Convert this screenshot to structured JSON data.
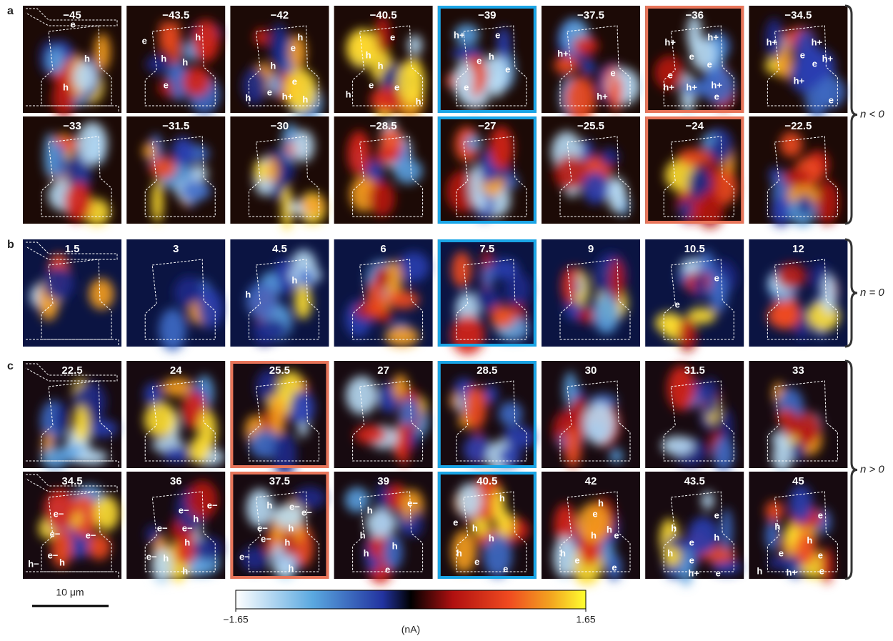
{
  "sections": [
    {
      "label": "a",
      "brace": "n < 0",
      "rows": [
        [
          {
            "title": "−45",
            "labels": [
              "e",
              "h",
              "h"
            ]
          },
          {
            "title": "−43.5",
            "labels": [
              "e",
              "h",
              "h",
              "h",
              "e"
            ]
          },
          {
            "title": "−42",
            "labels": [
              "h",
              "e",
              "h",
              "e",
              "h",
              "e",
              "h+",
              "h"
            ]
          },
          {
            "title": "−40.5",
            "labels": [
              "e",
              "h",
              "h",
              "e",
              "e",
              "h",
              "h"
            ]
          },
          {
            "title": "−39",
            "labels": [
              "h+",
              "e",
              "h",
              "e",
              "e",
              "e"
            ],
            "frame": "#1aa5e6"
          },
          {
            "title": "−37.5",
            "labels": [
              "h+",
              "e",
              "h+"
            ]
          },
          {
            "title": "−36",
            "labels": [
              "h+",
              "h+",
              "e",
              "e",
              "e",
              "h+",
              "h+",
              "h+",
              "e"
            ],
            "frame": "#e8755a"
          },
          {
            "title": "−34.5",
            "labels": [
              "h+",
              "h+",
              "e",
              "e",
              "h+",
              "h+",
              "e"
            ]
          }
        ],
        [
          {
            "title": "−33"
          },
          {
            "title": "−31.5"
          },
          {
            "title": "−30"
          },
          {
            "title": "−28.5"
          },
          {
            "title": "−27",
            "frame": "#1aa5e6"
          },
          {
            "title": "−25.5"
          },
          {
            "title": "−24",
            "frame": "#e8755a"
          },
          {
            "title": "−22.5"
          }
        ]
      ]
    },
    {
      "label": "b",
      "brace": "n = 0",
      "rows": [
        [
          {
            "title": "1.5"
          },
          {
            "title": "3"
          },
          {
            "title": "4.5",
            "labels": [
              "h",
              "h"
            ]
          },
          {
            "title": "6"
          },
          {
            "title": "7.5",
            "frame": "#1aa5e6"
          },
          {
            "title": "9"
          },
          {
            "title": "10.5",
            "labels": [
              "e",
              "e"
            ]
          },
          {
            "title": "12"
          }
        ]
      ]
    },
    {
      "label": "c",
      "brace": "n > 0",
      "rows": [
        [
          {
            "title": "22.5"
          },
          {
            "title": "24"
          },
          {
            "title": "25.5",
            "frame": "#e8755a"
          },
          {
            "title": "27"
          },
          {
            "title": "28.5",
            "frame": "#1aa5e6"
          },
          {
            "title": "30"
          },
          {
            "title": "31.5"
          },
          {
            "title": "33"
          }
        ],
        [
          {
            "title": "34.5",
            "labels": [
              "e−",
              "e−",
              "e−",
              "e−",
              "h−",
              "h"
            ]
          },
          {
            "title": "36",
            "labels": [
              "e−",
              "e−",
              "e−",
              "h",
              "e−",
              "h",
              "e−",
              "h",
              "h"
            ]
          },
          {
            "title": "37.5",
            "labels": [
              "h",
              "e−",
              "e−",
              "e−",
              "h",
              "e−",
              "h",
              "e−",
              "h"
            ],
            "frame": "#e8755a"
          },
          {
            "title": "39",
            "labels": [
              "e−",
              "h",
              "h",
              "h",
              "h",
              "e"
            ]
          },
          {
            "title": "40.5",
            "labels": [
              "h",
              "e",
              "h",
              "h",
              "h",
              "e",
              "e"
            ],
            "frame": "#1aa5e6"
          },
          {
            "title": "42",
            "labels": [
              "h",
              "e",
              "h",
              "h",
              "e",
              "h",
              "e",
              "e"
            ]
          },
          {
            "title": "43.5",
            "labels": [
              "e",
              "h",
              "h",
              "e",
              "h",
              "e",
              "h+",
              "e"
            ]
          },
          {
            "title": "45",
            "labels": [
              "e",
              "h",
              "h",
              "e",
              "e",
              "h",
              "h+",
              "e"
            ]
          }
        ]
      ]
    }
  ],
  "colorbar": {
    "lim": [
      -1.65,
      1.65
    ],
    "ticks": [
      {
        "value": -1.65,
        "label": "−1.65"
      },
      1.65
    ],
    "unit": "(nA)"
  },
  "scale_bar": "10 μm"
}
